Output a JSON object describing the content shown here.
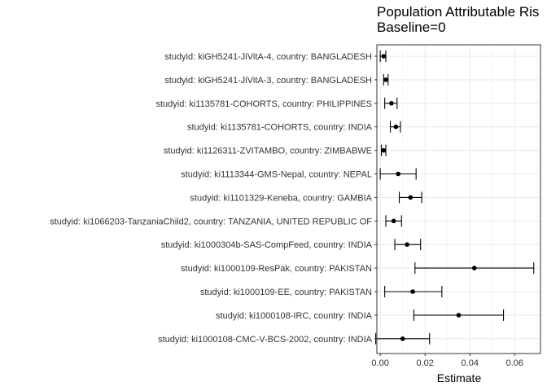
{
  "chart_data": {
    "type": "forest",
    "title": "Population Attributable Ris",
    "subtitle": "Baseline=0",
    "xlabel": "Estimate",
    "ylabel": "",
    "xlim": [
      -0.0015,
      0.0715
    ],
    "xticks": [
      0.0,
      0.02,
      0.04,
      0.06
    ],
    "xtick_labels": [
      "0.00",
      "0.02",
      "0.04",
      "0.06"
    ],
    "grid": true,
    "rows": [
      {
        "label": "studyid: kiGH5241-JiVitA-4, country: BANGLADESH",
        "estimate": 0.0015,
        "lower": 0.0,
        "upper": 0.0025
      },
      {
        "label": "studyid: kiGH5241-JiVitA-3, country: BANGLADESH",
        "estimate": 0.0025,
        "lower": 0.0015,
        "upper": 0.0035
      },
      {
        "label": "studyid: ki1135781-COHORTS, country: PHILIPPINES",
        "estimate": 0.005,
        "lower": 0.002,
        "upper": 0.0075
      },
      {
        "label": "studyid: ki1135781-COHORTS, country: INDIA",
        "estimate": 0.007,
        "lower": 0.0045,
        "upper": 0.009
      },
      {
        "label": "studyid: ki1126311-ZVITAMBO, country: ZIMBABWE",
        "estimate": 0.0015,
        "lower": 0.0005,
        "upper": 0.0025
      },
      {
        "label": "studyid: ki1113344-GMS-Nepal, country: NEPAL",
        "estimate": 0.008,
        "lower": 0.0,
        "upper": 0.016
      },
      {
        "label": "studyid: ki1101329-Keneba, country: GAMBIA",
        "estimate": 0.0135,
        "lower": 0.0085,
        "upper": 0.0185
      },
      {
        "label": "studyid: ki1066203-TanzaniaChild2, country: TANZANIA, UNITED REPUBLIC OF",
        "estimate": 0.006,
        "lower": 0.0025,
        "upper": 0.0095
      },
      {
        "label": "studyid: ki1000304b-SAS-CompFeed, country: INDIA",
        "estimate": 0.012,
        "lower": 0.0065,
        "upper": 0.018
      },
      {
        "label": "studyid: ki1000109-ResPak, country: PAKISTAN",
        "estimate": 0.042,
        "lower": 0.0155,
        "upper": 0.0685
      },
      {
        "label": "studyid: ki1000109-EE, country: PAKISTAN",
        "estimate": 0.0145,
        "lower": 0.002,
        "upper": 0.0275
      },
      {
        "label": "studyid: ki1000108-IRC, country: INDIA",
        "estimate": 0.035,
        "lower": 0.015,
        "upper": 0.055
      },
      {
        "label": "studyid: ki1000108-CMC-V-BCS-2002, country: INDIA",
        "estimate": 0.01,
        "lower": -0.002,
        "upper": 0.022
      }
    ]
  }
}
